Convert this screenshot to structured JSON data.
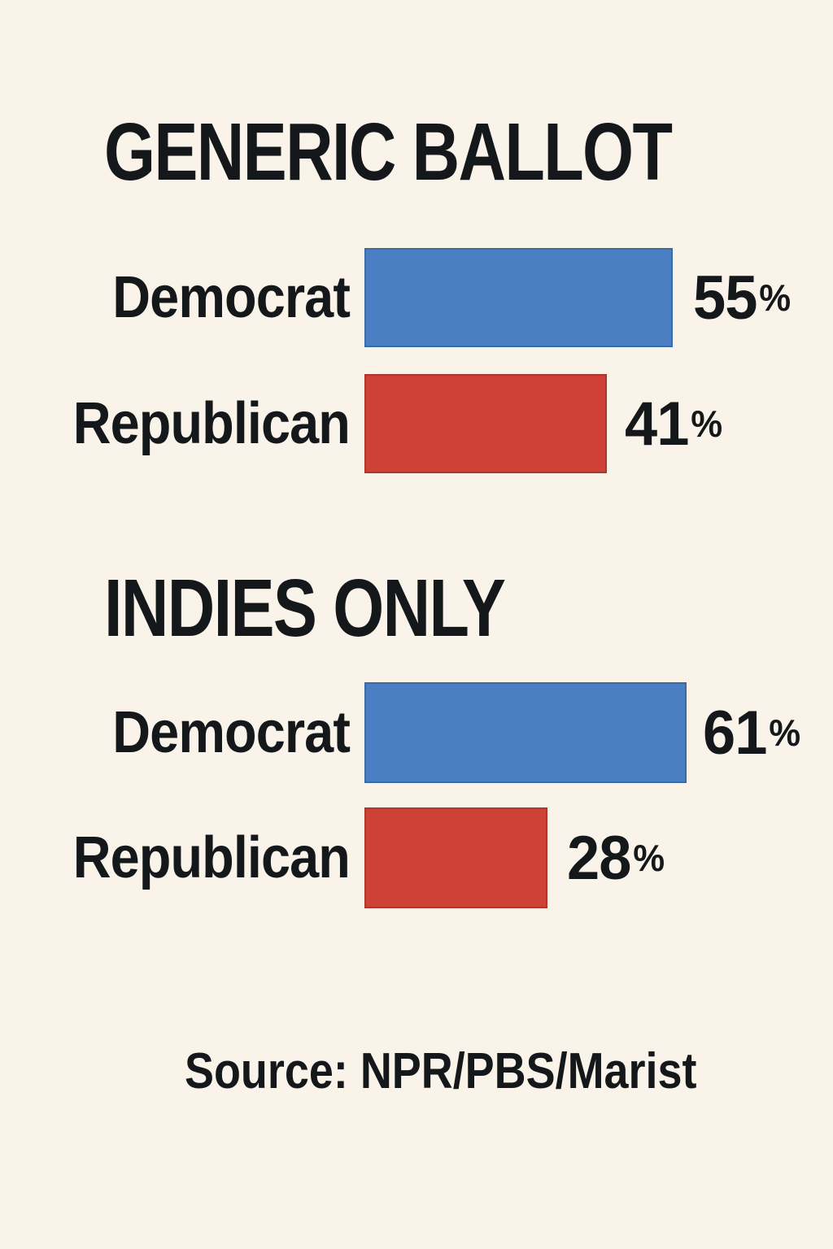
{
  "chart_data": {
    "type": "bar",
    "orientation": "horizontal",
    "sections": [
      {
        "title": "GENERIC BALLOT",
        "rows": [
          {
            "label": "Democrat",
            "party": "democrat",
            "value": 55,
            "unit": "%"
          },
          {
            "label": "Republican",
            "party": "republican",
            "value": 41,
            "unit": "%"
          }
        ]
      },
      {
        "title": "INDIES ONLY",
        "rows": [
          {
            "label": "Democrat",
            "party": "democrat",
            "value": 61,
            "unit": "%"
          },
          {
            "label": "Republican",
            "party": "republican",
            "value": 28,
            "unit": "%"
          }
        ]
      }
    ],
    "source": "Source: NPR/PBS/Marist",
    "colors": {
      "democrat": "#4b7fc3",
      "republican": "#cf4136",
      "text": "#15181a",
      "background": "#f9f3ea"
    },
    "layout_hints": {
      "value_labels_position": "right-of-bar",
      "category_labels_position": "left-of-bar",
      "grid": false,
      "axes": false
    }
  }
}
